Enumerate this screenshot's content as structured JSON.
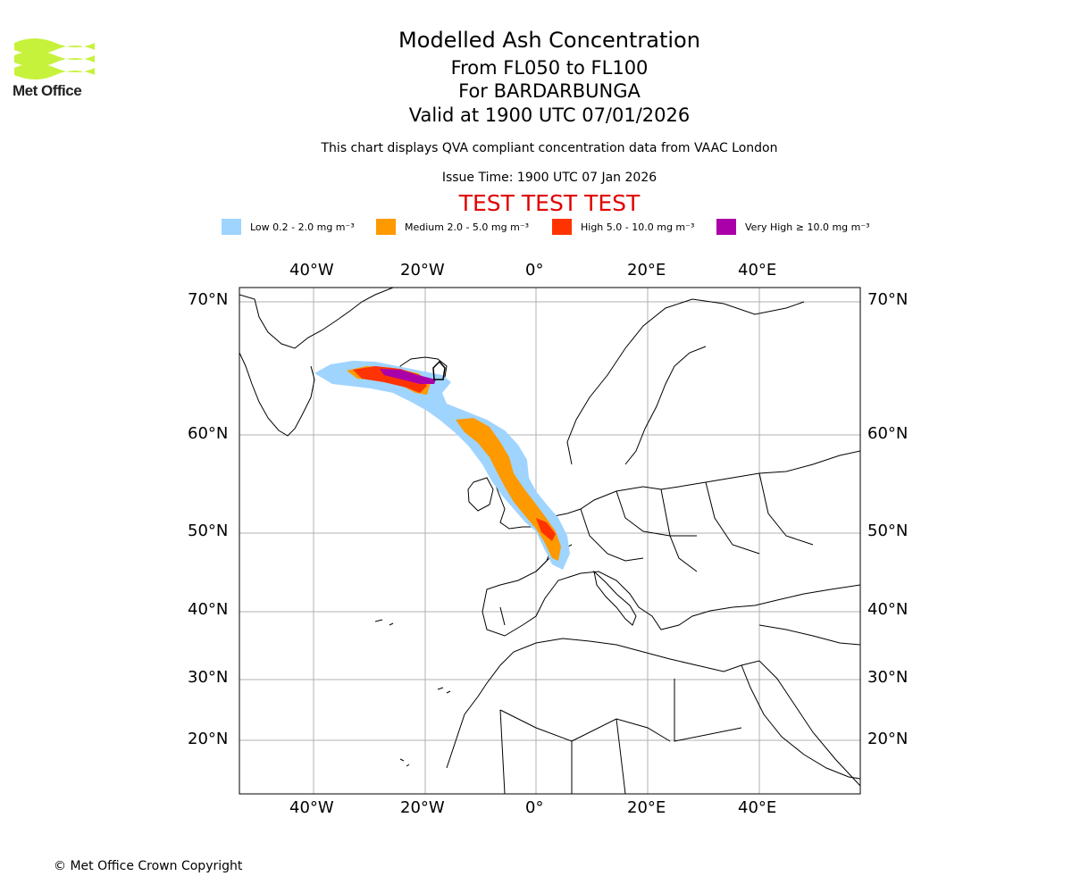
{
  "header": {
    "title": "Modelled Ash Concentration",
    "flight_levels": "From FL050 to FL100",
    "volcano": "For BARDARBUNGA",
    "valid": "Valid at 1900 UTC 07/01/2026",
    "subtitle": "This chart displays QVA compliant concentration data from VAAC London",
    "issue_time": "Issue Time: 1900 UTC 07 Jan 2026",
    "test_banner": "TEST TEST TEST"
  },
  "logo": {
    "text": "Met Office",
    "color": "#c7f23c"
  },
  "legend": [
    {
      "label": "Low 0.2 - 2.0 mg m⁻³",
      "color": "#9fd4ff"
    },
    {
      "label": "Medium 2.0 - 5.0 mg m⁻³",
      "color": "#ff9900"
    },
    {
      "label": "High 5.0 - 10.0 mg m⁻³",
      "color": "#ff3300"
    },
    {
      "label": "Very High ≥ 10.0 mg m⁻³",
      "color": "#aa00aa"
    }
  ],
  "map": {
    "lon_ticks": [
      "40°W",
      "20°W",
      "0°",
      "20°E",
      "40°E"
    ],
    "lat_ticks": [
      "70°N",
      "60°N",
      "50°N",
      "40°N",
      "30°N",
      "20°N"
    ]
  },
  "footer": {
    "copyright": "© Met Office Crown Copyright"
  }
}
